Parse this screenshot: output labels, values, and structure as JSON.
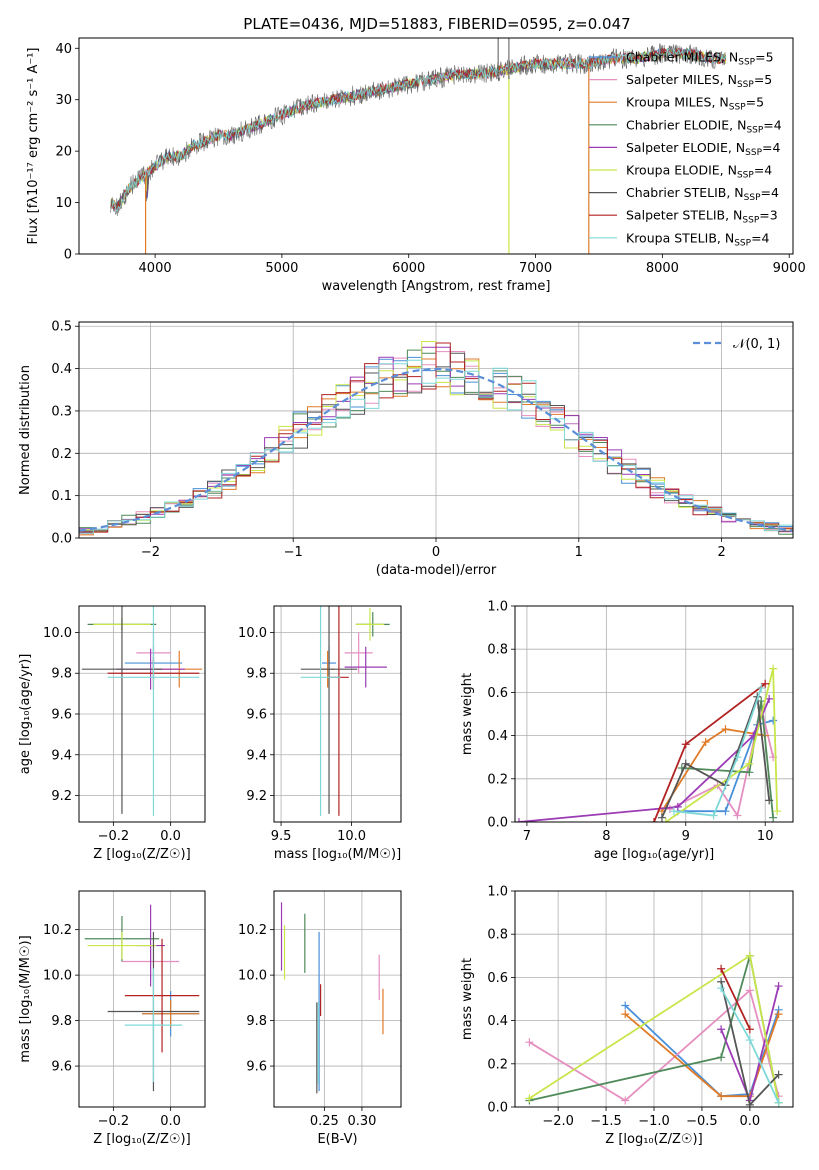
{
  "figure": {
    "title": "PLATE=0436, MJD=51883, FIBERID=0595, z=0.047"
  },
  "colors": {
    "Chabrier MILES": "#4a90d9",
    "Salpeter MILES": "#e58fc0",
    "Kroupa MILES": "#e07b28",
    "Chabrier ELODIE": "#4f8a5a",
    "Salpeter ELODIE": "#9b3bb5",
    "Kroupa ELODIE": "#c8e64a",
    "Chabrier STELIB": "#555555",
    "Salpeter STELIB": "#b22222",
    "Kroupa STELIB": "#7fd8d8"
  },
  "chart_data": [
    {
      "id": "spectrum",
      "type": "line",
      "title": "PLATE=0436, MJD=51883, FIBERID=0595, z=0.047",
      "xlabel": "wavelength [Angstrom, rest frame]",
      "ylabel": "Flux [fλ10⁻¹⁷ erg cm⁻² s⁻¹ A⁻¹]",
      "xlim": [
        3400,
        9030
      ],
      "ylim": [
        0,
        42
      ],
      "xticks": [
        4000,
        5000,
        6000,
        7000,
        8000,
        9000
      ],
      "yticks": [
        0,
        10,
        20,
        30,
        40
      ],
      "grid": false,
      "legend": "top-right",
      "x": [
        3650,
        3700,
        3800,
        3900,
        4000,
        4100,
        4200,
        4300,
        4400,
        4500,
        4600,
        4700,
        4800,
        4900,
        5000,
        5200,
        5400,
        5600,
        5800,
        6000,
        6200,
        6400,
        6600,
        6800,
        7000,
        7200,
        7400,
        7600,
        7800,
        8000,
        8200,
        8400,
        8500
      ],
      "y": [
        10,
        9,
        13,
        15,
        17,
        19,
        19,
        21,
        22,
        23,
        23,
        24,
        25,
        26,
        27,
        29,
        30,
        31,
        32,
        33,
        34,
        35,
        35,
        36,
        37,
        37,
        37,
        38,
        38,
        39,
        39,
        38,
        38
      ],
      "series": [
        {
          "name": "Chabrier MILES, N_SSP=5",
          "label_main": "Chabrier MILES, N",
          "label_sub": "SSP",
          "label_tail": "=5",
          "color": "#4a90d9"
        },
        {
          "name": "Salpeter MILES, N_SSP=5",
          "label_main": "Salpeter MILES, N",
          "label_sub": "SSP",
          "label_tail": "=5",
          "color": "#e58fc0"
        },
        {
          "name": "Kroupa MILES, N_SSP=5",
          "label_main": "Kroupa MILES, N",
          "label_sub": "SSP",
          "label_tail": "=5",
          "color": "#e07b28"
        },
        {
          "name": "Chabrier ELODIE, N_SSP=4",
          "label_main": "Chabrier ELODIE, N",
          "label_sub": "SSP",
          "label_tail": "=4",
          "color": "#4f8a5a"
        },
        {
          "name": "Salpeter ELODIE, N_SSP=4",
          "label_main": "Salpeter ELODIE, N",
          "label_sub": "SSP",
          "label_tail": "=4",
          "color": "#9b3bb5"
        },
        {
          "name": "Kroupa ELODIE, N_SSP=4",
          "label_main": "Kroupa ELODIE, N",
          "label_sub": "SSP",
          "label_tail": "=4",
          "color": "#c8e64a"
        },
        {
          "name": "Chabrier STELIB, N_SSP=4",
          "label_main": "Chabrier STELIB, N",
          "label_sub": "SSP",
          "label_tail": "=4",
          "color": "#555555"
        },
        {
          "name": "Salpeter STELIB, N_SSP=3",
          "label_main": "Salpeter STELIB, N",
          "label_sub": "SSP",
          "label_tail": "=3",
          "color": "#b22222"
        },
        {
          "name": "Kroupa STELIB, N_SSP=4",
          "label_main": "Kroupa STELIB, N",
          "label_sub": "SSP",
          "label_tail": "=4",
          "color": "#7fd8d8"
        }
      ]
    },
    {
      "id": "residuals",
      "type": "line",
      "xlabel": "(data-model)/error",
      "ylabel": "Normed distribution",
      "xlim": [
        -2.5,
        2.5
      ],
      "ylim": [
        0,
        0.51
      ],
      "xticks": [
        -2,
        -1,
        0,
        1,
        2
      ],
      "xticklabels": [
        "−2",
        "−1",
        "0",
        "1",
        "2"
      ],
      "yticks": [
        0.0,
        0.1,
        0.2,
        0.3,
        0.4,
        0.5
      ],
      "grid": true,
      "legend": "top-right",
      "legend_label": "𝒩(0, 1)",
      "gaussian": {
        "mean": 0,
        "sigma": 1
      }
    },
    {
      "id": "age_vs_Z",
      "type": "scatter",
      "xlabel": "Z [log₁₀(Z/Z☉)]",
      "ylabel": "age  [log₁₀(age/yr)]",
      "xlim": [
        -0.32,
        0.12
      ],
      "ylim": [
        9.07,
        10.13
      ],
      "xticks": [
        -0.2,
        0.0
      ],
      "xticklabels": [
        "−0.2",
        "0.0"
      ],
      "yticks": [
        9.2,
        9.4,
        9.6,
        9.8,
        10.0
      ],
      "grid": true,
      "points": [
        {
          "model": "Chabrier MILES",
          "x": -0.06,
          "y": 9.85,
          "xerr": 0.1,
          "yerr": 0.08
        },
        {
          "model": "Salpeter MILES",
          "x": -0.06,
          "y": 9.9,
          "xerr": 0.06,
          "yerr": 0.1
        },
        {
          "model": "Kroupa MILES",
          "x": 0.03,
          "y": 9.82,
          "xerr": 0.08,
          "yerr": 0.09
        },
        {
          "model": "Chabrier ELODIE",
          "x": -0.17,
          "y": 10.04,
          "xerr": 0.12,
          "yerr": 0.03
        },
        {
          "model": "Salpeter ELODIE",
          "x": -0.07,
          "y": 9.82,
          "xerr": 0.12,
          "yerr": 0.1
        },
        {
          "model": "Kroupa ELODIE",
          "x": -0.17,
          "y": 10.04,
          "xerr": 0.1,
          "yerr": 0.03
        },
        {
          "model": "Chabrier STELIB",
          "x": -0.17,
          "y": 9.82,
          "xerr": 0.14,
          "yerr": 0.71
        },
        {
          "model": "Salpeter STELIB",
          "x": -0.06,
          "y": 9.8,
          "xerr": 0.16,
          "yerr": 0.08
        },
        {
          "model": "Kroupa STELIB",
          "x": -0.06,
          "y": 9.78,
          "xerr": 0.16,
          "yerr": 0.68
        }
      ]
    },
    {
      "id": "age_vs_mass",
      "type": "scatter",
      "xlabel": "mass [log₁₀(M/M☉)]",
      "ylabel": "",
      "xlim": [
        9.45,
        10.35
      ],
      "ylim": [
        9.07,
        10.13
      ],
      "xticks": [
        9.5,
        10.0
      ],
      "xticklabels": [
        "9.5",
        "10.0"
      ],
      "yticks": [
        9.2,
        9.4,
        9.6,
        9.8,
        10.0
      ],
      "grid": true,
      "points": [
        {
          "model": "Chabrier MILES",
          "x": 9.84,
          "y": 9.85,
          "xerr": 0.05,
          "yerr": 0.08
        },
        {
          "model": "Salpeter MILES",
          "x": 10.05,
          "y": 9.9,
          "xerr": 0.1,
          "yerr": 0.1
        },
        {
          "model": "Kroupa MILES",
          "x": 9.83,
          "y": 9.82,
          "xerr": 0.05,
          "yerr": 0.09
        },
        {
          "model": "Chabrier ELODIE",
          "x": 10.15,
          "y": 10.04,
          "xerr": 0.12,
          "yerr": 0.06
        },
        {
          "model": "Salpeter ELODIE",
          "x": 10.1,
          "y": 9.83,
          "xerr": 0.15,
          "yerr": 0.1
        },
        {
          "model": "Kroupa ELODIE",
          "x": 10.13,
          "y": 10.04,
          "xerr": 0.1,
          "yerr": 0.08
        },
        {
          "model": "Chabrier STELIB",
          "x": 9.84,
          "y": 9.82,
          "xerr": 0.2,
          "yerr": 0.71
        },
        {
          "model": "Salpeter STELIB",
          "x": 9.91,
          "y": 9.78,
          "xerr": 0.07,
          "yerr": 0.68
        },
        {
          "model": "Kroupa STELIB",
          "x": 9.78,
          "y": 9.78,
          "xerr": 0.14,
          "yerr": 0.68
        }
      ]
    },
    {
      "id": "weight_vs_age",
      "type": "line",
      "xlabel": "age  [log₁₀(age/yr)]",
      "ylabel": "mass weight",
      "xlim": [
        6.85,
        10.35
      ],
      "ylim": [
        0,
        1.0
      ],
      "xticks": [
        7,
        8,
        9,
        10
      ],
      "yticks": [
        0.0,
        0.2,
        0.4,
        0.6,
        0.8,
        1.0
      ],
      "grid": true,
      "series": [
        {
          "model": "Chabrier MILES",
          "x": [
            8.9,
            9.5,
            9.9,
            10.1
          ],
          "y": [
            0.05,
            0.05,
            0.45,
            0.47
          ]
        },
        {
          "model": "Salpeter MILES",
          "x": [
            8.8,
            9.4,
            9.65,
            9.95,
            10.1
          ],
          "y": [
            0.06,
            0.17,
            0.03,
            0.53,
            0.3
          ]
        },
        {
          "model": "Kroupa MILES",
          "x": [
            8.7,
            9.25,
            9.5,
            10.0
          ],
          "y": [
            0.05,
            0.37,
            0.43,
            0.4
          ]
        },
        {
          "model": "Chabrier ELODIE",
          "x": [
            8.95,
            9.8,
            9.95,
            10.1
          ],
          "y": [
            0.25,
            0.23,
            0.56,
            0.02
          ]
        },
        {
          "model": "Salpeter ELODIE",
          "x": [
            6.9,
            8.9,
            9.85,
            10.05
          ],
          "y": [
            0.0,
            0.07,
            0.4,
            0.57
          ]
        },
        {
          "model": "Kroupa ELODIE",
          "x": [
            8.75,
            9.8,
            10.1,
            10.15
          ],
          "y": [
            0.0,
            0.27,
            0.71,
            0.05
          ]
        },
        {
          "model": "Chabrier STELIB",
          "x": [
            8.7,
            9.0,
            9.5,
            9.9,
            10.05
          ],
          "y": [
            0.02,
            0.27,
            0.17,
            0.58,
            0.1
          ]
        },
        {
          "model": "Salpeter STELIB",
          "x": [
            8.6,
            9.0,
            10.0
          ],
          "y": [
            0.0,
            0.36,
            0.64
          ]
        },
        {
          "model": "Kroupa STELIB",
          "x": [
            8.85,
            9.35,
            9.65,
            9.95
          ],
          "y": [
            0.05,
            0.03,
            0.3,
            0.62
          ]
        }
      ]
    },
    {
      "id": "mass_vs_Z",
      "type": "scatter",
      "xlabel": "Z [log₁₀(Z/Z☉)]",
      "ylabel": "mass [log₁₀(M/M☉)]",
      "xlim": [
        -0.32,
        0.12
      ],
      "ylim": [
        9.42,
        10.37
      ],
      "xticks": [
        -0.2,
        0.0
      ],
      "xticklabels": [
        "−0.2",
        "0.0"
      ],
      "yticks": [
        9.6,
        9.8,
        10.0,
        10.2
      ],
      "grid": true,
      "points": [
        {
          "model": "Chabrier MILES",
          "x": 0.0,
          "y": 9.83,
          "xerr": 0.1,
          "yerr": 0.1
        },
        {
          "model": "Salpeter MILES",
          "x": -0.07,
          "y": 10.06,
          "xerr": 0.1,
          "yerr": 0.08
        },
        {
          "model": "Kroupa MILES",
          "x": 0.0,
          "y": 9.83,
          "xerr": 0.1,
          "yerr": 0.06
        },
        {
          "model": "Chabrier ELODIE",
          "x": -0.17,
          "y": 10.16,
          "xerr": 0.13,
          "yerr": 0.1
        },
        {
          "model": "Salpeter ELODIE",
          "x": -0.07,
          "y": 10.13,
          "xerr": 0.05,
          "yerr": 0.18
        },
        {
          "model": "Kroupa ELODIE",
          "x": -0.17,
          "y": 10.13,
          "xerr": 0.12,
          "yerr": 0.06
        },
        {
          "model": "Chabrier STELIB",
          "x": -0.06,
          "y": 9.84,
          "xerr": 0.16,
          "yerr": 0.35
        },
        {
          "model": "Salpeter STELIB",
          "x": -0.03,
          "y": 9.91,
          "xerr": 0.13,
          "yerr": 0.25
        },
        {
          "model": "Kroupa STELIB",
          "x": -0.06,
          "y": 9.78,
          "xerr": 0.1,
          "yerr": 0.25
        }
      ]
    },
    {
      "id": "mass_vs_ebv",
      "type": "scatter",
      "xlabel": "E(B-V)",
      "ylabel": "",
      "xlim": [
        0.183,
        0.352
      ],
      "ylim": [
        9.42,
        10.37
      ],
      "xticks": [
        0.25,
        0.3
      ],
      "xticklabels": [
        "0.25",
        "0.30"
      ],
      "yticks": [
        9.6,
        9.8,
        10.0,
        10.2
      ],
      "grid": true,
      "points": [
        {
          "model": "Chabrier MILES",
          "x": 0.243,
          "y": 9.84,
          "xerr": 0,
          "yerr": 0.35
        },
        {
          "model": "Salpeter MILES",
          "x": 0.323,
          "y": 9.99,
          "xerr": 0,
          "yerr": 0.1
        },
        {
          "model": "Kroupa MILES",
          "x": 0.328,
          "y": 9.84,
          "xerr": 0,
          "yerr": 0.1
        },
        {
          "model": "Chabrier ELODIE",
          "x": 0.224,
          "y": 10.14,
          "xerr": 0,
          "yerr": 0.13
        },
        {
          "model": "Salpeter ELODIE",
          "x": 0.193,
          "y": 10.17,
          "xerr": 0,
          "yerr": 0.15
        },
        {
          "model": "Kroupa ELODIE",
          "x": 0.197,
          "y": 10.1,
          "xerr": 0,
          "yerr": 0.12
        },
        {
          "model": "Chabrier STELIB",
          "x": 0.24,
          "y": 9.68,
          "xerr": 0,
          "yerr": 0.2
        },
        {
          "model": "Salpeter STELIB",
          "x": 0.245,
          "y": 9.89,
          "xerr": 0,
          "yerr": 0.07
        },
        {
          "model": "Kroupa STELIB",
          "x": 0.242,
          "y": 9.7,
          "xerr": 0,
          "yerr": 0.18
        }
      ]
    },
    {
      "id": "weight_vs_Z",
      "type": "line",
      "xlabel": "Z [log₁₀(Z/Z☉)]",
      "ylabel": "mass weight",
      "xlim": [
        -2.45,
        0.45
      ],
      "ylim": [
        0,
        1.0
      ],
      "xticks": [
        -2.0,
        -1.5,
        -1.0,
        -0.5,
        0.0
      ],
      "xticklabels": [
        "−2.0",
        "−1.5",
        "−1.0",
        "−0.5",
        "0.0"
      ],
      "yticks": [
        0.0,
        0.2,
        0.4,
        0.6,
        0.8,
        1.0
      ],
      "grid": true,
      "series": [
        {
          "model": "Chabrier MILES",
          "x": [
            -1.3,
            -0.3,
            0.0,
            0.3
          ],
          "y": [
            0.47,
            0.05,
            0.06,
            0.45
          ]
        },
        {
          "model": "Salpeter MILES",
          "x": [
            -2.3,
            -1.3,
            0.0,
            0.3
          ],
          "y": [
            0.3,
            0.03,
            0.54,
            0.05
          ]
        },
        {
          "model": "Kroupa MILES",
          "x": [
            -1.3,
            -0.3,
            0.0,
            0.3
          ],
          "y": [
            0.43,
            0.05,
            0.05,
            0.43
          ]
        },
        {
          "model": "Chabrier ELODIE",
          "x": [
            -2.3,
            -0.3,
            0.0,
            0.3
          ],
          "y": [
            0.03,
            0.23,
            0.7,
            0.02
          ]
        },
        {
          "model": "Salpeter ELODIE",
          "x": [
            -0.3,
            0.0,
            0.3
          ],
          "y": [
            0.36,
            0.03,
            0.56
          ]
        },
        {
          "model": "Kroupa ELODIE",
          "x": [
            -2.3,
            0.0,
            0.3
          ],
          "y": [
            0.04,
            0.7,
            0.02
          ]
        },
        {
          "model": "Chabrier STELIB",
          "x": [
            -0.3,
            0.0,
            0.3
          ],
          "y": [
            0.58,
            0.01,
            0.15
          ]
        },
        {
          "model": "Salpeter STELIB",
          "x": [
            -0.3,
            0.0
          ],
          "y": [
            0.64,
            0.36
          ]
        },
        {
          "model": "Kroupa STELIB",
          "x": [
            -0.3,
            0.0,
            0.3
          ],
          "y": [
            0.55,
            0.31,
            0.02
          ]
        }
      ]
    }
  ]
}
